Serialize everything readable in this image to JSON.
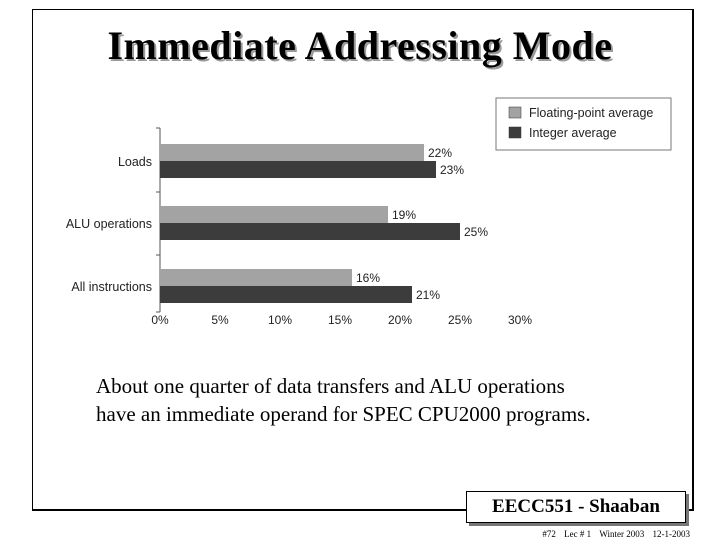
{
  "slide": {
    "title": "Immediate Addressing Mode",
    "caption_line1": "About one quarter of data transfers and ALU operations",
    "caption_line2": "have an immediate operand for SPEC CPU2000 programs.",
    "footer_box": "EECC551 - Shaaban",
    "footer_page": "#72",
    "footer_lec": "Lec # 1",
    "footer_term": "Winter 2003",
    "footer_date": "12-1-2003"
  },
  "chart_data": {
    "type": "bar",
    "orientation": "horizontal",
    "categories": [
      "Loads",
      "ALU operations",
      "All instructions"
    ],
    "series": [
      {
        "name": "Floating-point average",
        "values": [
          22,
          19,
          16
        ],
        "color": "#a3a3a3"
      },
      {
        "name": "Integer average",
        "values": [
          23,
          25,
          21
        ],
        "color": "#3c3c3c"
      }
    ],
    "data_labels": [
      [
        "22%",
        "19%",
        "16%"
      ],
      [
        "23%",
        "25%",
        "21%"
      ]
    ],
    "xticks": [
      "0%",
      "5%",
      "10%",
      "15%",
      "20%",
      "25%",
      "30%"
    ],
    "xlim": [
      0,
      30
    ],
    "legend": "top-right",
    "grid": false
  }
}
